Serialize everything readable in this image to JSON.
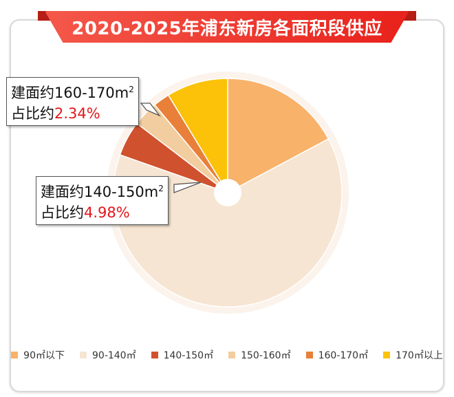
{
  "chart_data": {
    "type": "pie",
    "title": "2020-2025年浦东新房各面积段供应",
    "categories": [
      "90㎡以下",
      "90-140㎡",
      "140-150㎡",
      "150-160㎡",
      "160-170㎡",
      "170㎡以上"
    ],
    "values": [
      17.2,
      63.2,
      4.98,
      3.6,
      2.34,
      8.7
    ],
    "colors": [
      "#f8b26a",
      "#f6e5d2",
      "#cf512d",
      "#f2cd9f",
      "#e8803a",
      "#fbc209"
    ],
    "legend_position": "bottom",
    "annotations": [
      {
        "line1": "建面约160-170m",
        "sup": "2",
        "line2_prefix": "占比约",
        "value": "2.34%"
      },
      {
        "line1": "建面约140-150m",
        "sup": "2",
        "line2_prefix": "占比约",
        "value": "4.98%"
      }
    ]
  }
}
